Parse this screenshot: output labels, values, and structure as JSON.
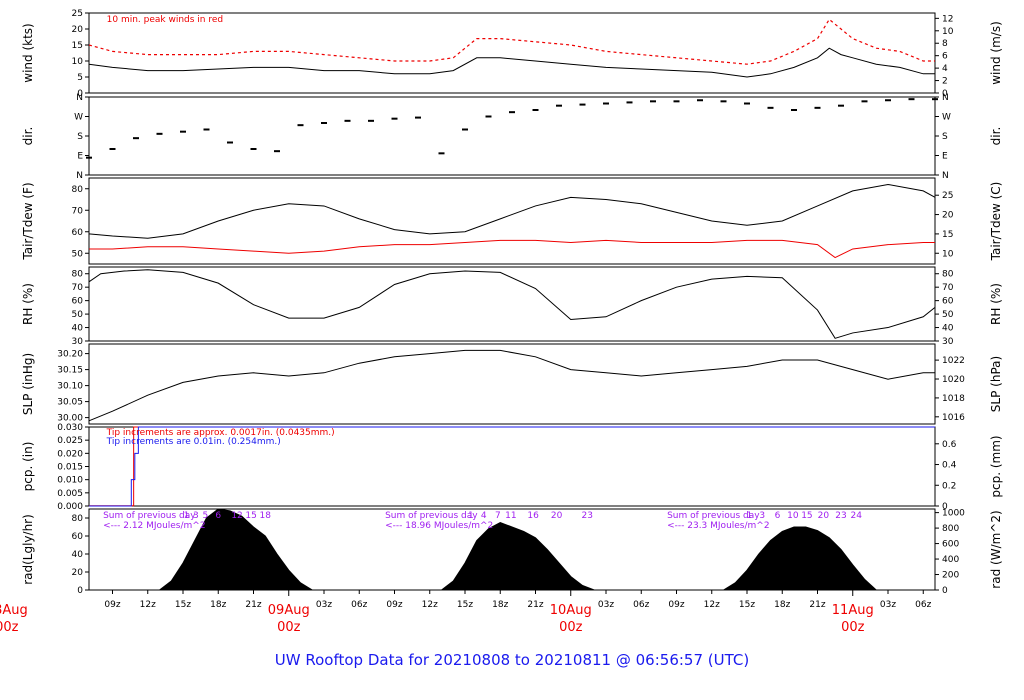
{
  "title": "UW Rooftop Data for 20210808  to  20210811 @ 06:56:57  (UTC)",
  "colors": {
    "primary": "#000000",
    "peak": "#ee0000",
    "dew": "#ee0000",
    "tip_small": "#ee0000",
    "tip_large": "#1a1aee",
    "radiation_note": "#a020f0",
    "title": "#1a1aee",
    "day_label": "#ee0000"
  },
  "x_axis": {
    "unit": "hours since 08Aug 00z",
    "range": [
      7,
      79
    ],
    "ticks": [
      {
        "h": 9,
        "label": "09z"
      },
      {
        "h": 12,
        "label": "12z"
      },
      {
        "h": 15,
        "label": "15z"
      },
      {
        "h": 18,
        "label": "18z"
      },
      {
        "h": 21,
        "label": "21z"
      },
      {
        "h": 27,
        "label": "03z"
      },
      {
        "h": 30,
        "label": "06z"
      },
      {
        "h": 33,
        "label": "09z"
      },
      {
        "h": 36,
        "label": "12z"
      },
      {
        "h": 39,
        "label": "15z"
      },
      {
        "h": 42,
        "label": "18z"
      },
      {
        "h": 45,
        "label": "21z"
      },
      {
        "h": 51,
        "label": "03z"
      },
      {
        "h": 54,
        "label": "06z"
      },
      {
        "h": 57,
        "label": "09z"
      },
      {
        "h": 60,
        "label": "12z"
      },
      {
        "h": 63,
        "label": "15z"
      },
      {
        "h": 66,
        "label": "18z"
      },
      {
        "h": 69,
        "label": "21z"
      },
      {
        "h": 75,
        "label": "03z"
      },
      {
        "h": 78,
        "label": "06z"
      }
    ],
    "day_labels": [
      {
        "h": 0,
        "date": "08Aug",
        "hour": "00z"
      },
      {
        "h": 24,
        "date": "09Aug",
        "hour": "00z"
      },
      {
        "h": 48,
        "date": "10Aug",
        "hour": "00z"
      },
      {
        "h": 72,
        "date": "11Aug",
        "hour": "00z"
      }
    ]
  },
  "notes": {
    "wind_peak": "10 min. peak winds in red",
    "tip_small": "Tip increments are approx. 0.0017in. (0.0435mm.)",
    "tip_large": "Tip increments are 0.01in. (0.254mm.)",
    "radiation": [
      {
        "h": 8.2,
        "line1": "Sum of previous day",
        "line2": "<--- 2.12 MJoules/m^2"
      },
      {
        "h": 32.2,
        "line1": "Sum of previous day",
        "line2": "<--- 18.96 MJoules/m^2"
      },
      {
        "h": 56.2,
        "line1": "Sum of previous day",
        "line2": "<--- 23.3 MJoules/m^2"
      }
    ],
    "radiation_hours": [
      {
        "h": 15.3,
        "label": "1"
      },
      {
        "h": 16.1,
        "label": "3"
      },
      {
        "h": 16.9,
        "label": "5"
      },
      {
        "h": 18.0,
        "label": "6"
      },
      {
        "h": 19.6,
        "label": "12"
      },
      {
        "h": 20.8,
        "label": "15"
      },
      {
        "h": 22.0,
        "label": "18"
      },
      {
        "h": 39.5,
        "label": "1"
      },
      {
        "h": 40.6,
        "label": "4"
      },
      {
        "h": 41.8,
        "label": "7"
      },
      {
        "h": 42.9,
        "label": "11"
      },
      {
        "h": 44.8,
        "label": "16"
      },
      {
        "h": 46.8,
        "label": "20"
      },
      {
        "h": 49.4,
        "label": "23"
      },
      {
        "h": 63.2,
        "label": "1"
      },
      {
        "h": 64.3,
        "label": "3"
      },
      {
        "h": 65.6,
        "label": "6"
      },
      {
        "h": 66.9,
        "label": "10"
      },
      {
        "h": 68.1,
        "label": "15"
      },
      {
        "h": 69.5,
        "label": "20"
      },
      {
        "h": 71.0,
        "label": "23"
      },
      {
        "h": 72.3,
        "label": "24"
      }
    ]
  },
  "chart_data": [
    {
      "type": "line",
      "key": "wind",
      "ylabel": "wind (kts)",
      "ylabel_right": "wind (m/s)",
      "ylim": [
        0,
        25
      ],
      "yticks": [
        0,
        5,
        10,
        15,
        20,
        25
      ],
      "right_ticks": [
        0,
        2,
        4,
        6,
        8,
        10,
        12
      ],
      "right_factor": 0.5144,
      "series": [
        {
          "name": "wind",
          "x": [
            7,
            9,
            12,
            15,
            18,
            21,
            24,
            27,
            30,
            33,
            36,
            38,
            40,
            42,
            45,
            48,
            51,
            54,
            57,
            60,
            63,
            65,
            67,
            69,
            70,
            71,
            72,
            74,
            76,
            78,
            79
          ],
          "y": [
            9,
            8,
            7,
            7,
            7.5,
            8,
            8,
            7,
            7,
            6,
            6,
            7,
            11,
            11,
            10,
            9,
            8,
            7.5,
            7,
            6.5,
            5,
            6,
            8,
            11,
            14,
            12,
            11,
            9,
            8,
            6,
            6
          ]
        },
        {
          "name": "peak",
          "x": [
            7,
            9,
            12,
            15,
            18,
            21,
            24,
            27,
            30,
            33,
            36,
            38,
            40,
            42,
            45,
            48,
            51,
            54,
            57,
            60,
            63,
            65,
            67,
            69,
            70,
            71,
            72,
            74,
            76,
            78,
            79
          ],
          "y": [
            15,
            13,
            12,
            12,
            12,
            13,
            13,
            12,
            11,
            10,
            10,
            11,
            17,
            17,
            16,
            15,
            13,
            12,
            11,
            10,
            9,
            10,
            13,
            17,
            23,
            20,
            17,
            14,
            13,
            10,
            10
          ]
        }
      ]
    },
    {
      "type": "scatter",
      "key": "dir",
      "ylabel": "dir.",
      "ylabel_right": "dir.",
      "ylim": [
        0,
        360
      ],
      "ytick_values": [
        0,
        90,
        180,
        270,
        360
      ],
      "ytick_labels": [
        "N",
        "E",
        "S",
        "W",
        "N"
      ],
      "series": [
        {
          "name": "direction",
          "x": [
            7,
            9,
            11,
            13,
            15,
            17,
            19,
            21,
            23,
            25,
            27,
            29,
            31,
            33,
            35,
            37,
            39,
            41,
            43,
            45,
            47,
            49,
            51,
            53,
            55,
            57,
            59,
            61,
            63,
            65,
            67,
            69,
            71,
            73,
            75,
            77,
            79
          ],
          "y": [
            80,
            120,
            170,
            190,
            200,
            210,
            150,
            120,
            110,
            230,
            240,
            250,
            250,
            260,
            265,
            100,
            210,
            270,
            290,
            300,
            320,
            325,
            330,
            335,
            340,
            340,
            345,
            340,
            330,
            310,
            300,
            310,
            320,
            340,
            345,
            350,
            350
          ]
        }
      ]
    },
    {
      "type": "line",
      "key": "temp",
      "ylabel": "Tair/Tdew (F)",
      "ylabel_right": "Tair/Tdew (C)",
      "ylim": [
        45,
        85
      ],
      "yticks": [
        50,
        60,
        70,
        80
      ],
      "right_ticks": [
        10,
        15,
        20,
        25
      ],
      "right_offset": 32,
      "right_factor": 0.5556,
      "series": [
        {
          "name": "Tair",
          "x": [
            7,
            9,
            12,
            15,
            18,
            21,
            24,
            27,
            30,
            33,
            36,
            39,
            42,
            45,
            48,
            51,
            54,
            57,
            60,
            63,
            66,
            69,
            72,
            75,
            78,
            79
          ],
          "y": [
            59,
            58,
            57,
            59,
            65,
            70,
            73,
            72,
            66,
            61,
            59,
            60,
            66,
            72,
            76,
            75,
            73,
            69,
            65,
            63,
            65,
            72,
            79,
            82,
            79,
            76
          ]
        },
        {
          "name": "Tdew",
          "x": [
            7,
            9,
            12,
            15,
            18,
            21,
            24,
            27,
            30,
            33,
            36,
            39,
            42,
            45,
            48,
            51,
            54,
            57,
            60,
            63,
            66,
            69,
            70.5,
            72,
            75,
            78,
            79
          ],
          "y": [
            52,
            52,
            53,
            53,
            52,
            51,
            50,
            51,
            53,
            54,
            54,
            55,
            56,
            56,
            55,
            56,
            55,
            55,
            55,
            56,
            56,
            54,
            48,
            52,
            54,
            55,
            55
          ]
        }
      ]
    },
    {
      "type": "line",
      "key": "rh",
      "ylabel": "RH (%)",
      "ylabel_right": "RH (%)",
      "ylim": [
        30,
        85
      ],
      "yticks": [
        30,
        40,
        50,
        60,
        70,
        80
      ],
      "right_ticks": [
        30,
        40,
        50,
        60,
        70,
        80
      ],
      "series": [
        {
          "name": "RH",
          "x": [
            7,
            8,
            10,
            12,
            15,
            18,
            21,
            24,
            27,
            30,
            33,
            36,
            39,
            42,
            45,
            48,
            51,
            54,
            57,
            60,
            63,
            66,
            69,
            70.5,
            72,
            75,
            78,
            79
          ],
          "y": [
            74,
            80,
            82,
            83,
            81,
            73,
            57,
            47,
            47,
            55,
            72,
            80,
            82,
            81,
            69,
            46,
            48,
            60,
            70,
            76,
            78,
            77,
            53,
            32,
            36,
            40,
            48,
            55
          ]
        }
      ]
    },
    {
      "type": "line",
      "key": "slp",
      "ylabel": "SLP (inHg)",
      "ylabel_right": "SLP (hPa)",
      "ylim": [
        29.98,
        30.23
      ],
      "yticks": [
        30.0,
        30.05,
        30.1,
        30.15,
        30.2
      ],
      "ytick_labels": [
        "30.00",
        "30.05",
        "30.10",
        "30.15",
        "30.20"
      ],
      "right_ticks": [
        1016,
        1018,
        1020,
        1022
      ],
      "right_factor": 33.8639,
      "series": [
        {
          "name": "SLP",
          "x": [
            7,
            9,
            12,
            15,
            18,
            21,
            24,
            27,
            30,
            33,
            36,
            39,
            42,
            45,
            48,
            51,
            54,
            57,
            60,
            63,
            66,
            69,
            72,
            75,
            78,
            79
          ],
          "y": [
            29.99,
            30.02,
            30.07,
            30.11,
            30.13,
            30.14,
            30.13,
            30.14,
            30.17,
            30.19,
            30.2,
            30.21,
            30.21,
            30.19,
            30.15,
            30.14,
            30.13,
            30.14,
            30.15,
            30.16,
            30.18,
            30.18,
            30.15,
            30.12,
            30.14,
            30.14
          ]
        }
      ]
    },
    {
      "type": "line",
      "key": "pcp",
      "ylabel": "pcp. (in)",
      "ylabel_right": "pcp. (mm)",
      "ylim": [
        0,
        0.03
      ],
      "yticks": [
        0,
        0.005,
        0.01,
        0.015,
        0.02,
        0.025,
        0.03
      ],
      "ytick_labels": [
        "0.000",
        "0.005",
        "0.010",
        "0.015",
        "0.020",
        "0.025",
        "0.030"
      ],
      "right_ticks": [
        0,
        0.2,
        0.4,
        0.6
      ],
      "right_factor": 25.4,
      "series": [
        {
          "name": "small tips",
          "x": [
            7,
            10.5,
            10.5,
            10.8,
            10.8,
            11,
            11,
            79
          ],
          "y": [
            0.0001,
            0.0001,
            0.0001,
            0.0001,
            0.03,
            0.03,
            0.03,
            0.03
          ]
        },
        {
          "name": "large tips",
          "x": [
            7,
            10.6,
            10.6,
            10.9,
            10.9,
            11.2,
            11.2,
            79
          ],
          "y": [
            0,
            0,
            0.01,
            0.01,
            0.02,
            0.02,
            0.03,
            0.03
          ]
        }
      ]
    },
    {
      "type": "area",
      "key": "rad",
      "ylabel": "rad(Lgly/hr)",
      "ylabel_right": "rad (W/m^2)",
      "ylim": [
        0,
        90
      ],
      "yticks": [
        0,
        20,
        40,
        60,
        80
      ],
      "right_ticks": [
        0,
        200,
        400,
        600,
        800,
        1000
      ],
      "right_factor": 11.63,
      "series": [
        {
          "name": "radiation",
          "x": [
            13,
            14,
            15,
            16,
            17,
            18,
            19,
            20,
            21,
            22,
            23,
            24,
            25,
            26,
            37,
            38,
            39,
            40,
            41,
            42,
            43,
            44,
            45,
            46,
            47,
            48,
            49,
            50,
            61,
            62,
            63,
            64,
            65,
            66,
            67,
            68,
            69,
            70,
            71,
            72,
            73,
            74
          ],
          "y": [
            0,
            10,
            30,
            55,
            80,
            90,
            88,
            82,
            70,
            60,
            40,
            22,
            8,
            0,
            0,
            10,
            30,
            55,
            68,
            75,
            70,
            65,
            58,
            45,
            30,
            15,
            5,
            0,
            0,
            8,
            22,
            40,
            55,
            65,
            70,
            70,
            66,
            58,
            45,
            28,
            12,
            0
          ]
        }
      ]
    }
  ]
}
